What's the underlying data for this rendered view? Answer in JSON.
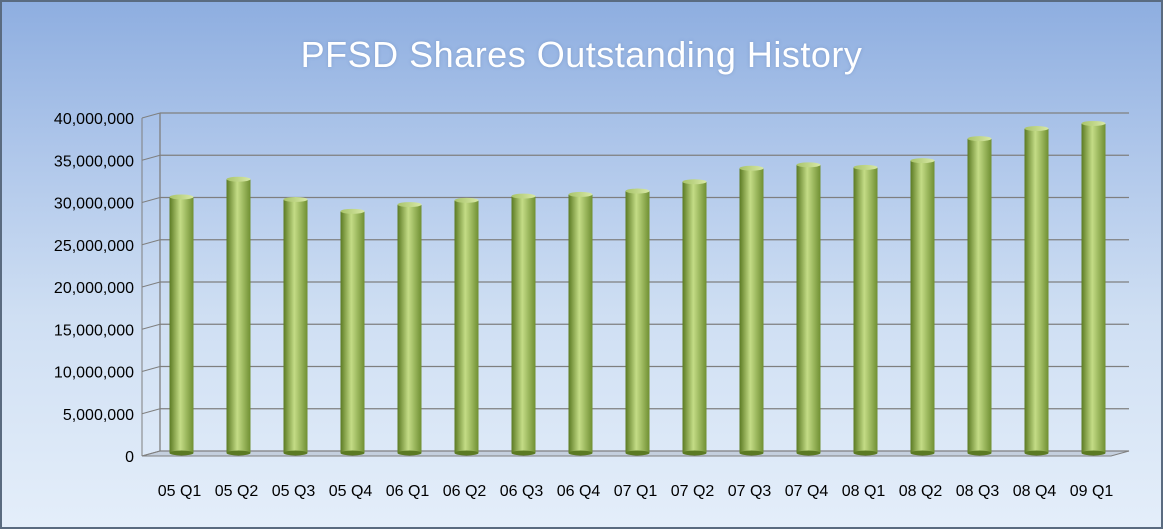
{
  "chart_data": {
    "type": "bar",
    "title": "PFSD Shares Outstanding History",
    "xlabel": "",
    "ylabel": "",
    "categories": [
      "05 Q1",
      "05 Q2",
      "05 Q3",
      "05 Q4",
      "06 Q1",
      "06 Q2",
      "06 Q3",
      "06 Q4",
      "07 Q1",
      "07 Q2",
      "07 Q3",
      "07 Q4",
      "08 Q1",
      "08 Q2",
      "08 Q3",
      "08 Q4",
      "09 Q1"
    ],
    "values": [
      30300000,
      32400000,
      30000000,
      28600000,
      29400000,
      29900000,
      30400000,
      30600000,
      31000000,
      32100000,
      33700000,
      34100000,
      33800000,
      34600000,
      37200000,
      38400000,
      39000000
    ],
    "ylim": [
      0,
      40000000
    ],
    "yticks": [
      0,
      5000000,
      10000000,
      15000000,
      20000000,
      25000000,
      30000000,
      35000000,
      40000000
    ],
    "ytick_labels": [
      "0",
      "5,000,000",
      "10,000,000",
      "15,000,000",
      "20,000,000",
      "25,000,000",
      "30,000,000",
      "35,000,000",
      "40,000,000"
    ],
    "grid": true,
    "legend": "none",
    "colors": {
      "bar_light": "#c4dc86",
      "bar_mid": "#8fb04a",
      "bar_dark": "#5b7a23",
      "grid": "#7f7f7f"
    }
  }
}
